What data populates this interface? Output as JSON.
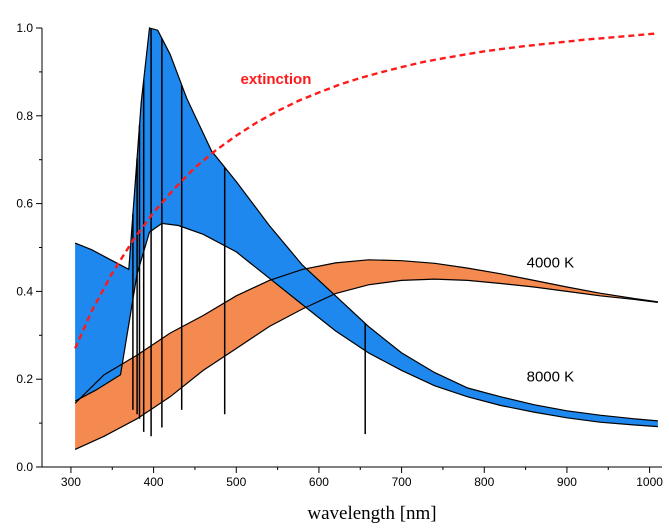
{
  "chart_data": {
    "type": "line",
    "title": "",
    "xlabel": "wavelength [nm]",
    "ylabel": "",
    "xlim": [
      265,
      1015
    ],
    "ylim": [
      0.0,
      1.0
    ],
    "x_ticks": [
      300,
      400,
      500,
      600,
      700,
      800,
      900,
      1000
    ],
    "y_ticks": [
      0.0,
      0.2,
      0.4,
      0.6,
      0.8,
      1.0
    ],
    "x_tick_labels": [
      "300",
      "400",
      "500",
      "600",
      "700",
      "800",
      "900",
      "1000"
    ],
    "y_tick_labels": [
      "0.0",
      "0.2",
      "0.4",
      "0.6",
      "0.8",
      "1.0"
    ],
    "grid": false,
    "colors": {
      "hot_band": "#1e88ee",
      "cool_band": "#f58a50",
      "overlap": "#800080",
      "extinction": "#ff1a1a",
      "outline": "#000000"
    },
    "annotations": [
      {
        "text": "extinction",
        "color": "#ff1a1a",
        "at": [
          548,
          0.872
        ]
      },
      {
        "text": "4000 K",
        "color": "#000000",
        "at": [
          880,
          0.455
        ]
      },
      {
        "text": "8000 K",
        "color": "#000000",
        "at": [
          880,
          0.195
        ]
      }
    ],
    "series": [
      {
        "id": "extinction",
        "style": "dashed",
        "x": [
          305,
          325,
          350,
          375,
          400,
          425,
          450,
          475,
          500,
          525,
          550,
          575,
          600,
          625,
          650,
          675,
          700,
          725,
          750,
          775,
          800,
          825,
          850,
          875,
          900,
          925,
          950,
          975,
          1000,
          1010
        ],
        "values": [
          0.27,
          0.355,
          0.442,
          0.516,
          0.58,
          0.634,
          0.682,
          0.721,
          0.755,
          0.785,
          0.811,
          0.834,
          0.853,
          0.871,
          0.886,
          0.899,
          0.911,
          0.922,
          0.931,
          0.939,
          0.947,
          0.953,
          0.959,
          0.964,
          0.969,
          0.974,
          0.978,
          0.982,
          0.986,
          0.988
        ]
      },
      {
        "id": "8000K_top",
        "x": [
          305,
          325,
          350,
          370,
          385,
          395,
          405,
          420,
          440,
          470,
          500,
          540,
          580,
          620,
          660,
          700,
          740,
          780,
          820,
          860,
          900,
          940,
          980,
          1010
        ],
        "values": [
          0.51,
          0.495,
          0.47,
          0.45,
          0.83,
          1.0,
          0.995,
          0.94,
          0.84,
          0.72,
          0.65,
          0.55,
          0.46,
          0.39,
          0.32,
          0.26,
          0.215,
          0.18,
          0.16,
          0.142,
          0.128,
          0.118,
          0.11,
          0.105
        ]
      },
      {
        "id": "8000K_bottom",
        "x": [
          305,
          330,
          360,
          380,
          395,
          410,
          430,
          460,
          500,
          540,
          580,
          620,
          660,
          700,
          740,
          780,
          820,
          860,
          900,
          940,
          980,
          1010
        ],
        "values": [
          0.15,
          0.175,
          0.21,
          0.44,
          0.535,
          0.555,
          0.55,
          0.53,
          0.49,
          0.43,
          0.37,
          0.31,
          0.26,
          0.22,
          0.185,
          0.16,
          0.14,
          0.125,
          0.112,
          0.102,
          0.096,
          0.092
        ]
      },
      {
        "id": "4000K_top",
        "x": [
          305,
          340,
          380,
          420,
          460,
          500,
          540,
          580,
          620,
          660,
          700,
          740,
          780,
          820,
          860,
          900,
          940,
          980,
          1010
        ],
        "values": [
          0.145,
          0.21,
          0.255,
          0.305,
          0.345,
          0.39,
          0.425,
          0.45,
          0.465,
          0.472,
          0.47,
          0.464,
          0.453,
          0.44,
          0.425,
          0.41,
          0.396,
          0.384,
          0.376
        ]
      },
      {
        "id": "4000K_bottom",
        "x": [
          305,
          340,
          380,
          420,
          460,
          500,
          540,
          580,
          620,
          660,
          700,
          740,
          780,
          820,
          860,
          900,
          940,
          980,
          1010
        ],
        "values": [
          0.04,
          0.07,
          0.11,
          0.16,
          0.22,
          0.27,
          0.32,
          0.36,
          0.395,
          0.415,
          0.425,
          0.428,
          0.425,
          0.418,
          0.41,
          0.4,
          0.39,
          0.382,
          0.375
        ]
      },
      {
        "id": "absorption_lines",
        "x": [
          375,
          380,
          383,
          388,
          397,
          410,
          434,
          486,
          656
        ],
        "values": [
          0.13,
          0.12,
          0.11,
          0.08,
          0.07,
          0.09,
          0.13,
          0.12,
          0.075
        ]
      }
    ]
  }
}
